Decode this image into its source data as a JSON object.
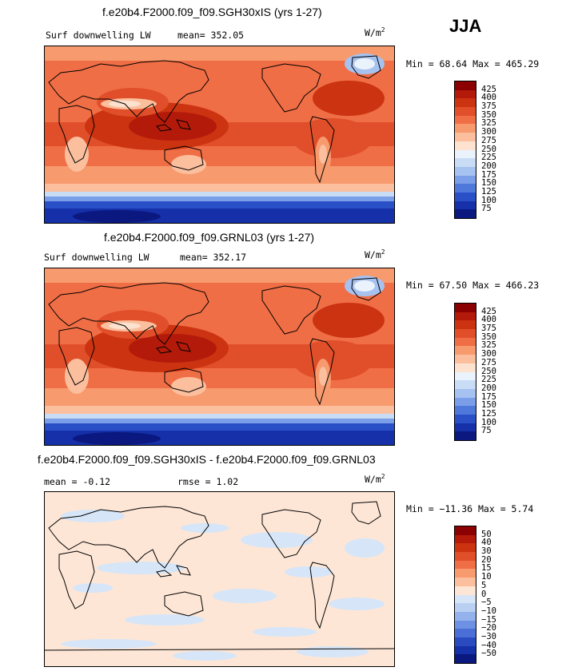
{
  "season": "JJA",
  "panels": [
    {
      "title": "f.e20b4.F2000.f09_f09.SGH30xIS (yrs 1-27)",
      "variable": "Surf downwelling LW",
      "stat1": "mean= 352.05",
      "stat2": "",
      "units": "W/m",
      "units_exp": "2",
      "minmax": "Min =  68.64 Max = 465.29"
    },
    {
      "title": "f.e20b4.F2000.f09_f09.GRNL03 (yrs 1-27)",
      "variable": "Surf downwelling LW",
      "stat1": "mean= 352.17",
      "stat2": "",
      "units": "W/m",
      "units_exp": "2",
      "minmax": "Min =  67.50 Max = 466.23"
    },
    {
      "title": "f.e20b4.F2000.f09_f09.SGH30xIS - f.e20b4.F2000.f09_f09.GRNL03",
      "variable": "",
      "stat1": "mean =  -0.12",
      "stat2": "rmse =   1.02",
      "units": "W/m",
      "units_exp": "2",
      "minmax": "Min = −11.36 Max =   5.74"
    }
  ],
  "chart_data": [
    {
      "type": "heatmap",
      "title": "f.e20b4.F2000.f09_f09.SGH30xIS (yrs 1-27)",
      "variable": "Surf downwelling LW",
      "season": "JJA",
      "mean": 352.05,
      "min": 68.64,
      "max": 465.29,
      "units": "W/m^2",
      "colorbar_levels": [
        "425",
        "400",
        "375",
        "350",
        "325",
        "300",
        "275",
        "250",
        "225",
        "200",
        "175",
        "150",
        "125",
        "100",
        "75"
      ],
      "colorbar_colors": [
        "#8b0000",
        "#b31a0a",
        "#cc3311",
        "#e04f2a",
        "#f06e45",
        "#f79a6e",
        "#fbbf9e",
        "#fde2cf",
        "#eaf2fb",
        "#c9dcf5",
        "#a6c2f0",
        "#7a9fe8",
        "#4f78db",
        "#2a50c8",
        "#1530a8",
        "#0a1880"
      ]
    },
    {
      "type": "heatmap",
      "title": "f.e20b4.F2000.f09_f09.GRNL03 (yrs 1-27)",
      "variable": "Surf downwelling LW",
      "season": "JJA",
      "mean": 352.17,
      "min": 67.5,
      "max": 466.23,
      "units": "W/m^2",
      "colorbar_levels": [
        "425",
        "400",
        "375",
        "350",
        "325",
        "300",
        "275",
        "250",
        "225",
        "200",
        "175",
        "150",
        "125",
        "100",
        "75"
      ],
      "colorbar_colors": [
        "#8b0000",
        "#b31a0a",
        "#cc3311",
        "#e04f2a",
        "#f06e45",
        "#f79a6e",
        "#fbbf9e",
        "#fde2cf",
        "#eaf2fb",
        "#c9dcf5",
        "#a6c2f0",
        "#7a9fe8",
        "#4f78db",
        "#2a50c8",
        "#1530a8",
        "#0a1880"
      ]
    },
    {
      "type": "heatmap",
      "title": "f.e20b4.F2000.f09_f09.SGH30xIS - f.e20b4.F2000.f09_f09.GRNL03",
      "season": "JJA",
      "mean": -0.12,
      "rmse": 1.02,
      "min": -11.36,
      "max": 5.74,
      "units": "W/m^2",
      "colorbar_levels": [
        "50",
        "40",
        "30",
        "20",
        "15",
        "10",
        "5",
        "0",
        "−5",
        "−10",
        "−15",
        "−20",
        "−30",
        "−40",
        "−50"
      ],
      "colorbar_colors": [
        "#8b0000",
        "#b31a0a",
        "#cc3311",
        "#e04f2a",
        "#f06e45",
        "#f79a6e",
        "#fbbf9e",
        "#fde6d6",
        "#d6e6f8",
        "#b9d0f2",
        "#94b3ec",
        "#6e92e3",
        "#4a6fd6",
        "#2a4bc0",
        "#1530a8",
        "#0a1880"
      ]
    }
  ]
}
